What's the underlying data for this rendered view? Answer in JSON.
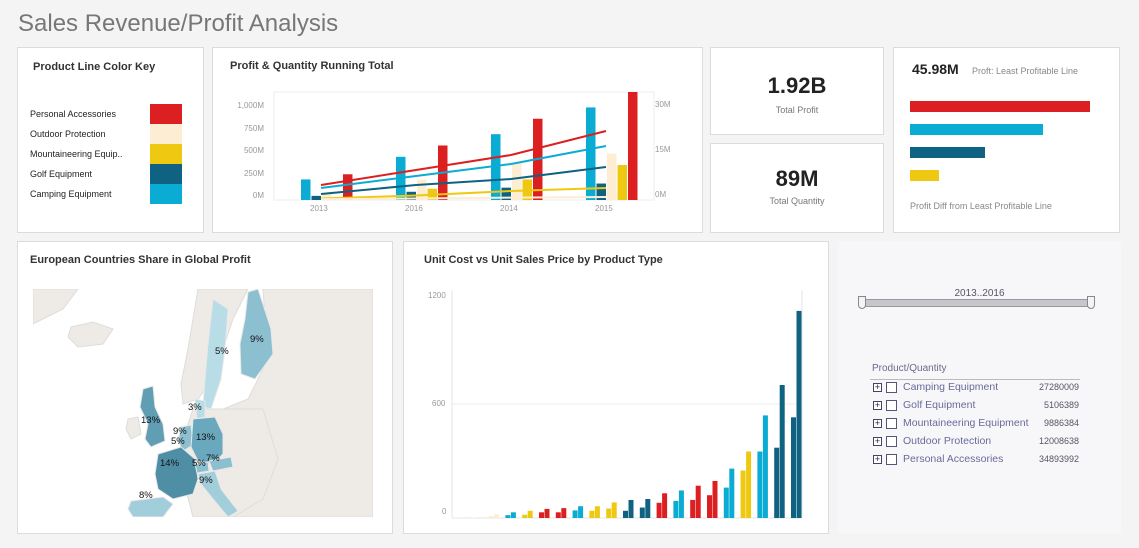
{
  "page": {
    "title": "Sales Revenue/Profit Analysis"
  },
  "colors": {
    "personal_accessories": "#dc1f20",
    "outdoor_protection": "#fdeed3",
    "mountaineering_equipment": "#eec811",
    "golf_equipment": "#0f6281",
    "camping_equipment": "#0aacd3"
  },
  "color_key": {
    "title": "Product Line Color Key",
    "items": [
      {
        "label": "Personal Accessories",
        "color": "#dc1f20"
      },
      {
        "label": "Outdoor Protection",
        "color": "#fdeed3"
      },
      {
        "label": "Mountaineering Equip..",
        "color": "#eec811"
      },
      {
        "label": "Golf Equipment",
        "color": "#0f6281"
      },
      {
        "label": "Camping Equipment",
        "color": "#0aacd3"
      }
    ]
  },
  "running_total": {
    "title": "Profit & Quantity Running Total",
    "left_axis": [
      "1,000M",
      "750M",
      "500M",
      "250M",
      "0M"
    ],
    "right_axis": [
      "30M",
      "15M",
      "0M"
    ],
    "x_labels": [
      "2013",
      "2016",
      "2014",
      "2015"
    ]
  },
  "kpis": {
    "total_profit": {
      "value": "1.92B",
      "label": "Total Profit"
    },
    "total_quantity": {
      "value": "89M",
      "label": "Total Quantity"
    }
  },
  "profit_diff": {
    "value": "45.98M",
    "value_label": "Proft: Least Profitable Line",
    "footer": "Profit Diff from Least Profitable Line"
  },
  "map": {
    "title": "European Countries Share in Global Profit",
    "labels": [
      {
        "country": "Finland",
        "value": "9%"
      },
      {
        "country": "Sweden",
        "value": "5%"
      },
      {
        "country": "Denmark",
        "value": "3%"
      },
      {
        "country": "United Kingdom",
        "value": "13%"
      },
      {
        "country": "Netherlands",
        "value": "9%"
      },
      {
        "country": "Belgium",
        "value": "5%"
      },
      {
        "country": "Germany",
        "value": "13%"
      },
      {
        "country": "France",
        "value": "14%"
      },
      {
        "country": "Switzerland",
        "value": "5%"
      },
      {
        "country": "Austria",
        "value": "7%"
      },
      {
        "country": "Italy",
        "value": "9%"
      },
      {
        "country": "Spain",
        "value": "8%"
      }
    ]
  },
  "unit_chart": {
    "title": "Unit Cost vs Unit Sales Price by Product Type",
    "y_ticks": [
      "1200",
      "600",
      "0"
    ]
  },
  "filter": {
    "slider_label": "2013..2016",
    "tree_header": "Product/Quantity",
    "rows": [
      {
        "label": "Camping Equipment",
        "value": "27280009"
      },
      {
        "label": "Golf Equipment",
        "value": "5106389"
      },
      {
        "label": "Mountaineering Equipment",
        "value": "9886384"
      },
      {
        "label": "Outdoor Protection",
        "value": "12008638"
      },
      {
        "label": "Personal Accessories",
        "value": "34893992"
      }
    ]
  },
  "chart_data": [
    {
      "type": "bar",
      "title": "Profit & Quantity Running Total",
      "categories": [
        "2013",
        "2016",
        "2014",
        "2015"
      ],
      "ylabel": "Profit (running total)",
      "ylim": [
        0,
        1050
      ],
      "y2lim": [
        0,
        34
      ],
      "series": [
        {
          "name": "Camping Equipment",
          "values": [
            200,
            420,
            640,
            900
          ]
        },
        {
          "name": "Golf Equipment",
          "values": [
            40,
            80,
            120,
            160
          ]
        },
        {
          "name": "Outdoor Protection",
          "values": [
            60,
            200,
            360,
            450
          ]
        },
        {
          "name": "Mountaineering Equipment",
          "values": [
            20,
            110,
            200,
            340
          ]
        },
        {
          "name": "Personal Accessories",
          "values": [
            250,
            530,
            790,
            1150
          ]
        }
      ],
      "lines": [
        {
          "name": "Personal Accessories Qty",
          "values": [
            5,
            10,
            15,
            23
          ]
        },
        {
          "name": "Camping Equipment Qty",
          "values": [
            4,
            8,
            12,
            18
          ]
        },
        {
          "name": "Golf Equipment Qty",
          "values": [
            2,
            5,
            7,
            11
          ]
        },
        {
          "name": "Mountaineering Equipment Qty",
          "values": [
            0.5,
            1.5,
            3,
            4
          ]
        },
        {
          "name": "Outdoor Protection Qty",
          "values": [
            0.3,
            0.5,
            0.8,
            1
          ]
        }
      ]
    },
    {
      "type": "bar",
      "title": "Profit Diff from Least Profitable Line",
      "categories": [
        "Personal Accessories",
        "Camping Equipment",
        "Golf Equipment",
        "Mountaineering Equipment"
      ],
      "values": [
        180,
        133,
        75,
        29
      ]
    },
    {
      "type": "bar",
      "title": "Unit Cost vs Unit Sales Price by Product Type",
      "ylim": [
        0,
        1200
      ],
      "y_ticks": [
        0,
        600,
        1200
      ],
      "categories": [
        "1",
        "2",
        "3",
        "4",
        "5",
        "6",
        "7",
        "8",
        "9",
        "10",
        "11",
        "12",
        "13",
        "14",
        "15",
        "16",
        "17",
        "18",
        "19",
        "20",
        "21"
      ],
      "colors": [
        "#fdeed3",
        "#fdeed3",
        "#fdeed3",
        "#0aacd3",
        "#eec811",
        "#dc1f20",
        "#dc1f20",
        "#0aacd3",
        "#eec811",
        "#eec811",
        "#0f6281",
        "#0f6281",
        "#dc1f20",
        "#0aacd3",
        "#dc1f20",
        "#dc1f20",
        "#0aacd3",
        "#eec811",
        "#0aacd3",
        "#0f6281",
        "#0f6281"
      ],
      "series": [
        {
          "name": "Unit Cost",
          "values": [
            2,
            3,
            10,
            15,
            17,
            30,
            30,
            40,
            38,
            50,
            38,
            55,
            80,
            90,
            95,
            120,
            160,
            250,
            350,
            370,
            530
          ]
        },
        {
          "name": "Unit Sales Price",
          "values": [
            4,
            5,
            20,
            30,
            38,
            48,
            52,
            62,
            62,
            82,
            95,
            100,
            130,
            145,
            170,
            195,
            260,
            350,
            540,
            700,
            1090
          ]
        }
      ]
    }
  ]
}
